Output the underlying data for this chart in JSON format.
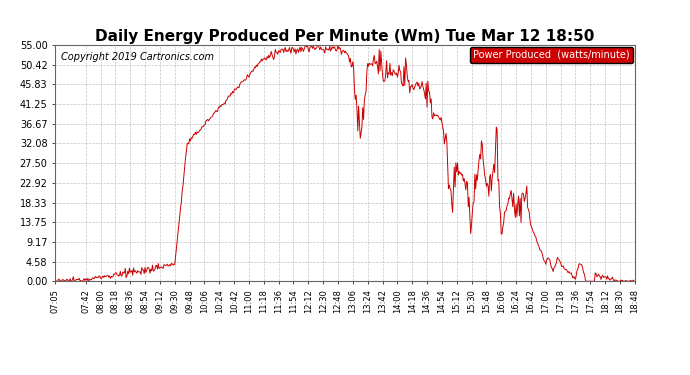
{
  "title": "Daily Energy Produced Per Minute (Wm) Tue Mar 12 18:50",
  "copyright": "Copyright 2019 Cartronics.com",
  "legend_label": "Power Produced  (watts/minute)",
  "legend_bg": "#cc0000",
  "legend_fg": "#ffffff",
  "line_color": "#cc0000",
  "bg_color": "#ffffff",
  "plot_bg": "#ffffff",
  "grid_color": "#aaaaaa",
  "ylim": [
    0,
    55.0
  ],
  "yticks": [
    0.0,
    4.58,
    9.17,
    13.75,
    18.33,
    22.92,
    27.5,
    32.08,
    36.67,
    41.25,
    45.83,
    50.42,
    55.0
  ],
  "title_fontsize": 11,
  "copyright_fontsize": 7,
  "x_tick_labels": [
    "07:05",
    "07:42",
    "08:00",
    "08:18",
    "08:36",
    "08:54",
    "09:12",
    "09:30",
    "09:48",
    "10:06",
    "10:24",
    "10:42",
    "11:00",
    "11:18",
    "11:36",
    "11:54",
    "12:12",
    "12:30",
    "12:48",
    "13:06",
    "13:24",
    "13:42",
    "14:00",
    "14:18",
    "14:36",
    "14:54",
    "15:12",
    "15:30",
    "15:48",
    "16:06",
    "16:24",
    "16:42",
    "17:00",
    "17:18",
    "17:36",
    "17:54",
    "18:12",
    "18:30",
    "18:48"
  ]
}
